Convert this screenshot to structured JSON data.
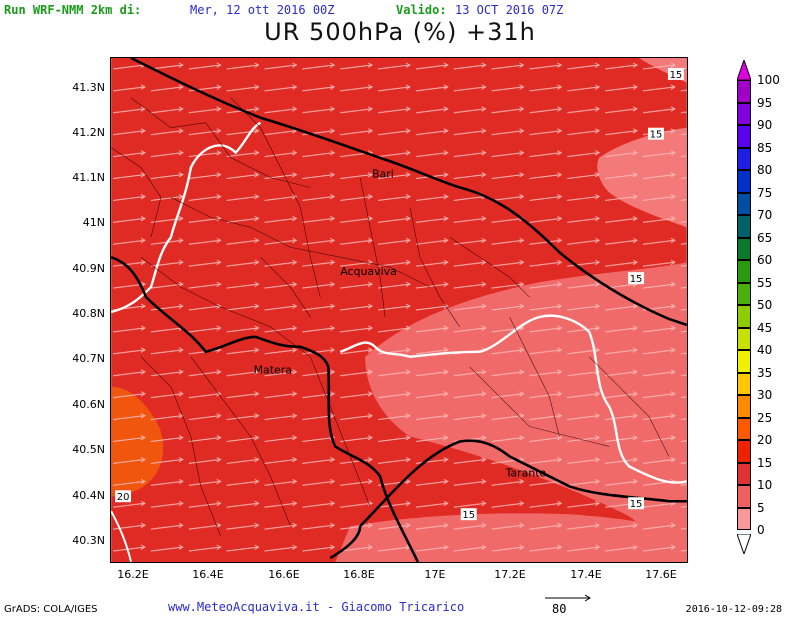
{
  "header": {
    "run_label": "Run WRF-NMM 2km di:",
    "run_value": "Mer, 12 ott 2016 00Z",
    "valid_label": "Valido:",
    "valid_value": "13 OCT 2016 07Z",
    "title": "UR 500hPa (%) +31h"
  },
  "axes": {
    "lat_labels": [
      "41.3N",
      "41.2N",
      "41.1N",
      "41N",
      "40.9N",
      "40.8N",
      "40.7N",
      "40.6N",
      "40.5N",
      "40.4N",
      "40.3N"
    ],
    "lon_labels": [
      "16.2E",
      "16.4E",
      "16.6E",
      "16.8E",
      "17E",
      "17.2E",
      "17.4E",
      "17.6E"
    ]
  },
  "colorbar": {
    "labels": [
      "100",
      "95",
      "90",
      "85",
      "80",
      "75",
      "70",
      "65",
      "60",
      "55",
      "50",
      "45",
      "40",
      "35",
      "30",
      "25",
      "20",
      "15",
      "10",
      "5",
      "0"
    ],
    "colors": [
      "#a000c8",
      "#8200dc",
      "#5a00f0",
      "#1e1ee6",
      "#0030c8",
      "#004ea0",
      "#00606a",
      "#0a7a2a",
      "#2a9a10",
      "#4cb00a",
      "#8ccc00",
      "#c8e000",
      "#f0f000",
      "#ffc800",
      "#ff8c00",
      "#ff5a00",
      "#ee2200",
      "#e03232",
      "#f06060",
      "#f89898",
      "#ffd2d2"
    ]
  },
  "map": {
    "field_colors": {
      "band_20": "#e02a24",
      "band_15": "#ec4848",
      "band_10": "#f46a6a",
      "band_25": "#f25a10"
    },
    "contour_labels": [
      "15",
      "15",
      "15",
      "15",
      "15",
      "20"
    ],
    "cities": [
      "Bari",
      "Acquaviva",
      "Matera",
      "Taranto"
    ]
  },
  "footer": {
    "grads": "GrADS: COLA/IGES",
    "website": "www.MeteoAcquaviva.it  -  Giacomo Tricarico",
    "vector_label": "80",
    "timestamp": "2016-10-12-09:28"
  }
}
